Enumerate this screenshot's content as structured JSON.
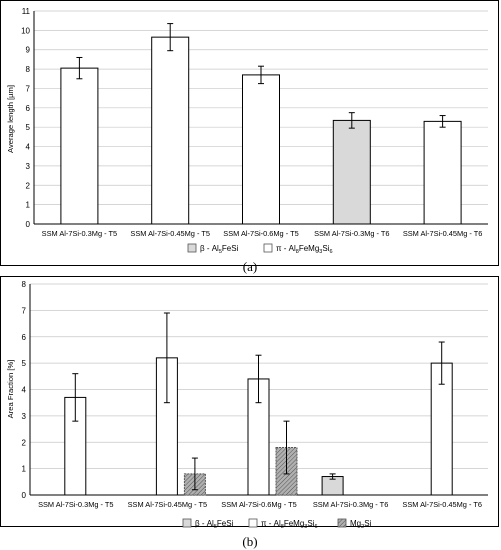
{
  "colors": {
    "frame": "#000000",
    "pi_fill": "#ffffff",
    "beta_fill": "#d9d9d9",
    "mg2si_fill": "#bfbfbf",
    "grid": "#c8c8c8"
  },
  "chart_data": [
    {
      "id": "a",
      "type": "bar",
      "panel_label": "(a)",
      "title": "",
      "xlabel": "",
      "ylabel": "Average length [µm]",
      "ylim": [
        0,
        11
      ],
      "yticks": [
        "0",
        "1",
        "2",
        "3",
        "4",
        "5",
        "6",
        "7",
        "8",
        "9",
        "10",
        "11"
      ],
      "grid": "horizontal",
      "categories": [
        "SSM Al-7Si-0.3Mg - T5",
        "SSM Al-7Si-0.45Mg - T5",
        "SSM Al-7Si-0.6Mg - T5",
        "SSM Al-7Si-0.3Mg - T6",
        "SSM Al-7Si-0.45Mg - T6"
      ],
      "values": [
        8.05,
        9.65,
        7.7,
        5.35,
        5.3
      ],
      "errors": [
        0.55,
        0.7,
        0.45,
        0.4,
        0.3
      ],
      "bar_phase": [
        "pi",
        "pi",
        "pi",
        "beta",
        "pi"
      ],
      "legend_position": "bottom",
      "legend": [
        {
          "key": "beta",
          "prefix": "β - Al",
          "sub1": "5",
          "mid": "FeSi",
          "sub2": "",
          "tail": ""
        },
        {
          "key": "pi",
          "prefix": "π - Al",
          "sub1": "8",
          "mid": "FeMg",
          "sub2": "3",
          "tail": "Si",
          "sub3": "6"
        }
      ]
    },
    {
      "id": "b",
      "type": "bar",
      "panel_label": "(b)",
      "title": "",
      "xlabel": "",
      "ylabel": "Area Fraction [%]",
      "ylim": [
        0,
        8
      ],
      "yticks": [
        "0",
        "1",
        "2",
        "3",
        "4",
        "5",
        "6",
        "7",
        "8"
      ],
      "grid": "horizontal",
      "categories": [
        "SSM Al-7Si-0.3Mg - T5",
        "SSM Al-7Si-0.45Mg - T5",
        "SSM Al-7Si-0.6Mg - T5",
        "SSM Al-7Si-0.3Mg - T6",
        "SSM Al-7Si-0.45Mg - T6"
      ],
      "series": [
        {
          "key": "beta",
          "values": [
            null,
            null,
            null,
            0.7,
            null
          ],
          "errors": [
            null,
            null,
            null,
            0.1,
            null
          ]
        },
        {
          "key": "pi",
          "values": [
            3.7,
            5.2,
            4.4,
            null,
            5.0
          ],
          "errors": [
            0.9,
            1.7,
            0.9,
            null,
            0.8
          ]
        },
        {
          "key": "mg2si",
          "values": [
            null,
            0.8,
            1.8,
            null,
            null
          ],
          "errors": [
            null,
            0.6,
            1.0,
            null,
            null
          ]
        }
      ],
      "legend_position": "bottom",
      "legend": [
        {
          "key": "beta",
          "prefix": "β - Al",
          "sub1": "5",
          "mid": "FeSi",
          "sub2": "",
          "tail": ""
        },
        {
          "key": "pi",
          "prefix": "π - Al",
          "sub1": "8",
          "mid": "FeMg",
          "sub2": "3",
          "tail": "Si",
          "sub3": "6"
        },
        {
          "key": "mg2si",
          "prefix": "Mg",
          "sub1": "2",
          "mid": "Si",
          "sub2": "",
          "tail": ""
        }
      ]
    }
  ]
}
